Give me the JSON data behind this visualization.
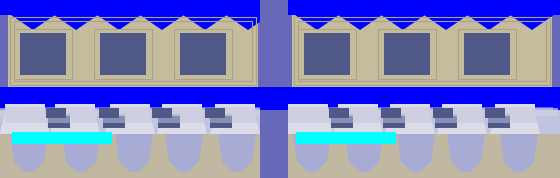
{
  "fig_width": 5.6,
  "fig_height": 1.78,
  "dpi": 100,
  "bg_color": "#6868b8",
  "blue_bright": "#0000ff",
  "gray_tan": "#c4bc9c",
  "gray_outline": "#a8a488",
  "light_lavender": "#c0c4e0",
  "lavender_mid": "#a8acd4",
  "dark_blue_sq": "#505888",
  "cyan": "#00ffff",
  "white_ish": "#dcdce8",
  "pale_gray": "#d0d0e0",
  "substrate": "#c0b8a0"
}
